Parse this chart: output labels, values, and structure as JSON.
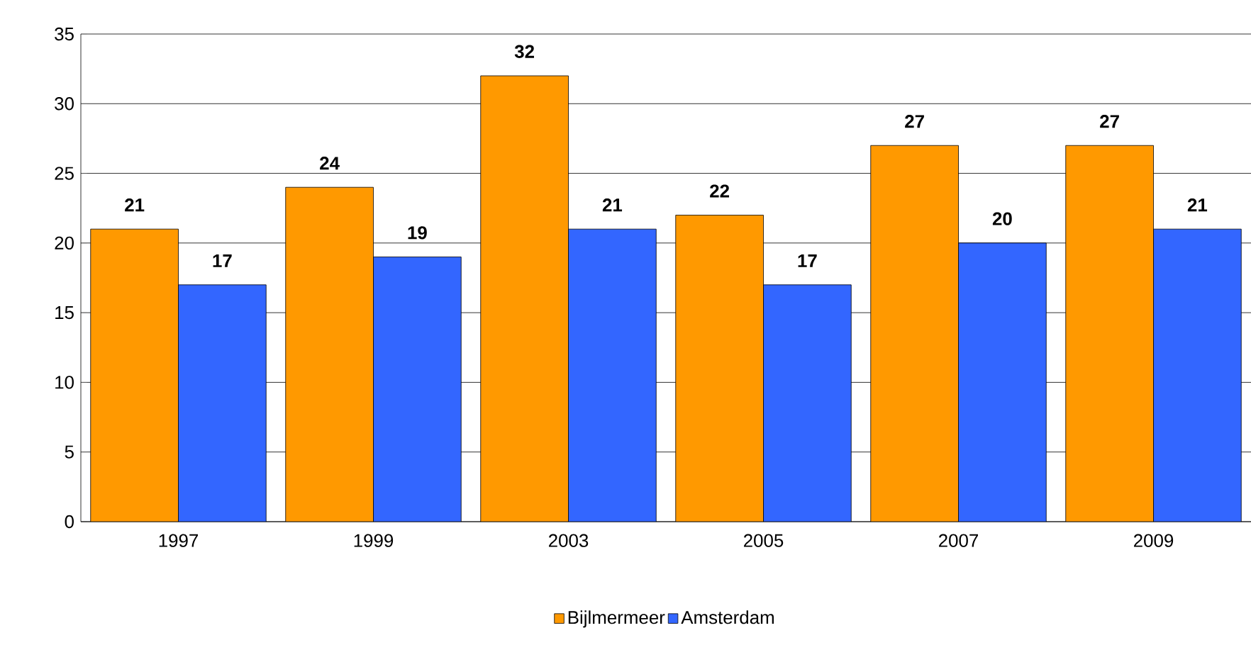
{
  "chart_data": {
    "type": "bar",
    "categories": [
      "1997",
      "1999",
      "2003",
      "2005",
      "2007",
      "2009"
    ],
    "series": [
      {
        "name": "Bijlmermeer",
        "color": "#ff9900",
        "values": [
          21,
          24,
          32,
          22,
          27,
          27
        ]
      },
      {
        "name": "Amsterdam",
        "color": "#3366ff",
        "values": [
          17,
          19,
          21,
          17,
          20,
          21
        ]
      }
    ],
    "ylim": [
      0,
      35
    ],
    "yticks": [
      0,
      5,
      10,
      15,
      20,
      25,
      30,
      35
    ],
    "grid": "y",
    "legend": "bottom",
    "data_labels": true
  }
}
